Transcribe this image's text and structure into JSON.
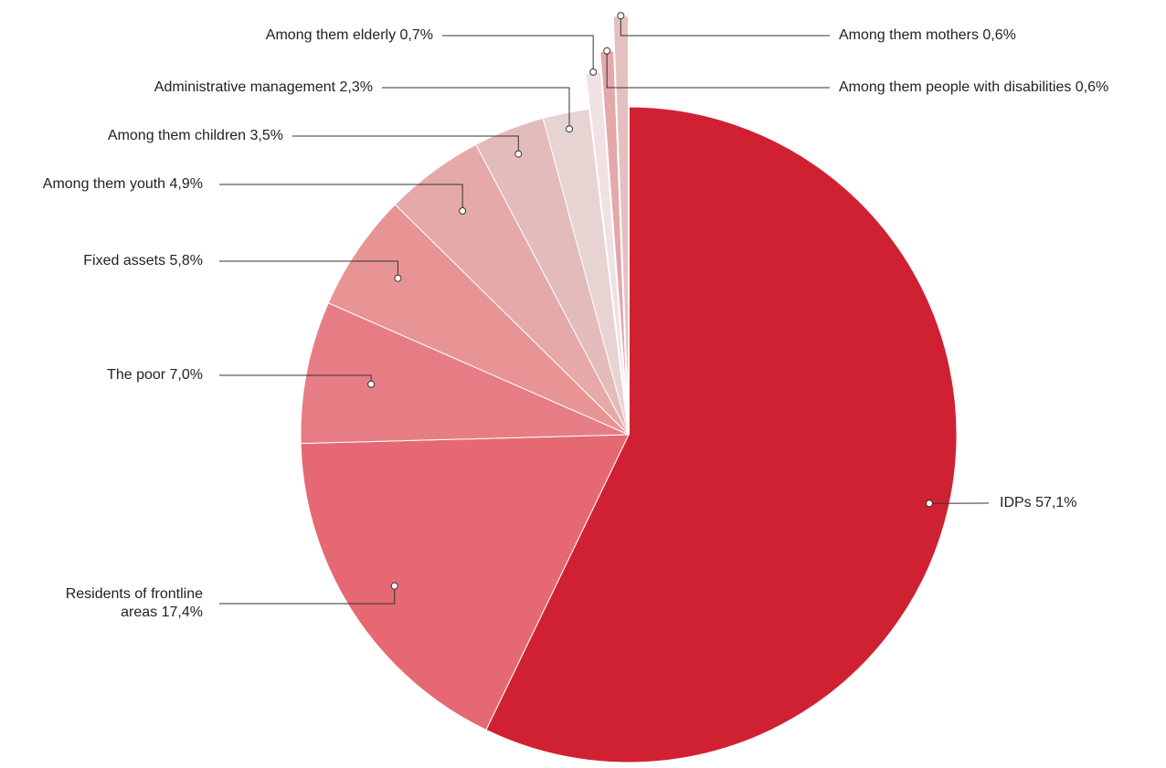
{
  "chart_data": {
    "type": "pie",
    "title": "",
    "slices": [
      {
        "label": "IDPs",
        "value": 57.1,
        "value_label": "57,1%",
        "color": "#d02133",
        "explode": false
      },
      {
        "label": "Residents of frontline areas",
        "value": 17.4,
        "value_label": "17,4%",
        "label_lines": [
          "Residents of frontline",
          "areas 17,4%"
        ],
        "color": "#e56873",
        "explode": false
      },
      {
        "label": "The poor",
        "value": 7.0,
        "value_label": "7,0%",
        "color": "#e67d85",
        "explode": false
      },
      {
        "label": "Fixed assets",
        "value": 5.8,
        "value_label": "5,8%",
        "color": "#e89494",
        "explode": false
      },
      {
        "label": "Among them youth",
        "value": 4.9,
        "value_label": "4,9%",
        "color": "#e6a9aa",
        "explode": false
      },
      {
        "label": "Among them children",
        "value": 3.5,
        "value_label": "3,5%",
        "color": "#e3bbba",
        "explode": false
      },
      {
        "label": "Administrative management",
        "value": 2.3,
        "value_label": "2,3%",
        "color": "#e8d3d3",
        "explode": false
      },
      {
        "label": "Among them elderly",
        "value": 0.7,
        "value_label": "0,7%",
        "color": "#f0e1e3",
        "explode": true
      },
      {
        "label": "Among them people with disabilities",
        "value": 0.6,
        "value_label": "0,6%",
        "color": "#e3a8aa",
        "explode": true
      },
      {
        "label": "Among them mothers",
        "value": 0.6,
        "value_label": "0,6%",
        "color": "#e5c0c0",
        "explode": true
      }
    ],
    "start_angle_deg": 0,
    "direction": "clockwise",
    "legend": "none",
    "data_labels": "outside with leader lines"
  }
}
